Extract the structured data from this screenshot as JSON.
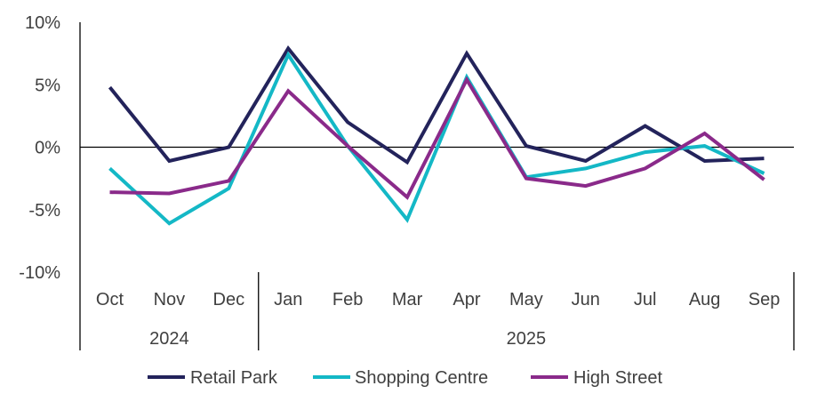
{
  "chart_data": {
    "type": "line",
    "categories": [
      "Oct",
      "Nov",
      "Dec",
      "Jan",
      "Feb",
      "Mar",
      "Apr",
      "May",
      "Jun",
      "Jul",
      "Aug",
      "Sep"
    ],
    "category_groups": [
      {
        "label": "2024",
        "count": 3
      },
      {
        "label": "2025",
        "count": 9
      }
    ],
    "y_ticks": [
      "10%",
      "5%",
      "0%",
      "-5%",
      "-10%"
    ],
    "y_tick_values": [
      10,
      5,
      0,
      -5,
      -10
    ],
    "ylim": [
      -10,
      10
    ],
    "y_unit": "%",
    "grid": false,
    "legend_position": "bottom",
    "series": [
      {
        "name": "Retail Park",
        "color": "#23235b",
        "values": [
          4.8,
          -1.1,
          0.0,
          7.9,
          2.0,
          -1.2,
          7.5,
          0.1,
          -1.1,
          1.7,
          -1.1,
          -0.9
        ]
      },
      {
        "name": "Shopping Centre",
        "color": "#14b8c6",
        "values": [
          -1.7,
          -6.1,
          -3.3,
          7.4,
          0.1,
          -5.8,
          5.6,
          -2.4,
          -1.7,
          -0.4,
          0.1,
          -2.1
        ]
      },
      {
        "name": "High Street",
        "color": "#8a2a8a",
        "values": [
          -3.6,
          -3.7,
          -2.7,
          4.5,
          0.1,
          -4.0,
          5.4,
          -2.5,
          -3.1,
          -1.7,
          1.1,
          -2.6
        ]
      }
    ]
  }
}
